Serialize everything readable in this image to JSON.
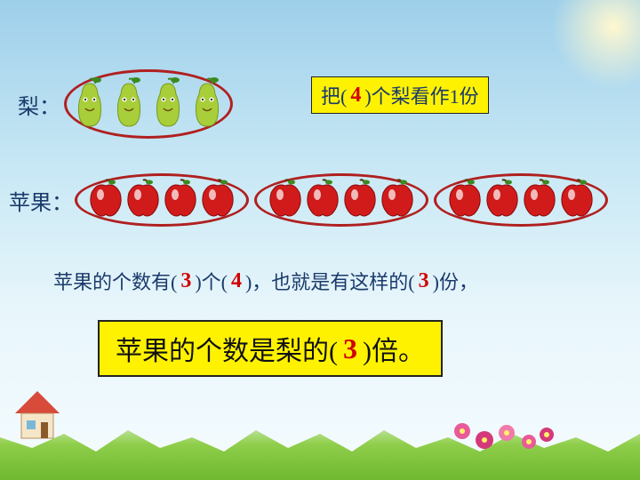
{
  "pear": {
    "label": "梨：",
    "count": 4,
    "fill": "#a8ce3a",
    "leaf": "#3a8a1f",
    "group_border": "#b02020"
  },
  "apple": {
    "label": "苹果：",
    "groups": 3,
    "per_group": 4,
    "fill": "#d11b1b",
    "leaf": "#3a8a1f",
    "shine": "#ffffff",
    "group_border": "#b02020"
  },
  "box1": {
    "pre": "把(",
    "value": "4",
    "post": ")个梨看作1份"
  },
  "sentence": {
    "s1": "苹果的个数有(",
    "v1": "3",
    "s2": ")个(",
    "v2": "4",
    "s3": ")，也就是有这样的(",
    "v3": "3",
    "s4": ")份，"
  },
  "box2": {
    "pre": "苹果的个数是梨的(",
    "value": "3",
    "post": ")倍。"
  },
  "style": {
    "yellow": "#fff200",
    "text_blue": "#1a3a6b",
    "red": "#d00000"
  }
}
